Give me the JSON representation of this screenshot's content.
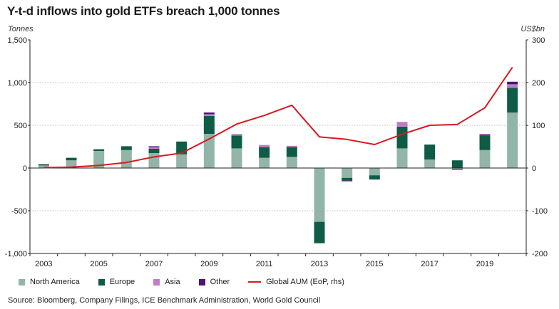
{
  "title": "Y-t-d inflows into gold ETFs breach 1,000 tonnes",
  "source": "Source: Bloomberg, Company Filings, ICE Benchmark Administration, World Gold Council",
  "chart_data": {
    "type": "bar",
    "stacked": true,
    "categories": [
      "2003",
      "2004",
      "2005",
      "2006",
      "2007",
      "2008",
      "2009",
      "2010",
      "2011",
      "2012",
      "2013",
      "2014",
      "2015",
      "2016",
      "2017",
      "2018",
      "2019",
      "2020"
    ],
    "x_tick_labels": [
      "2003",
      "2005",
      "2007",
      "2009",
      "2011",
      "2013",
      "2015",
      "2017",
      "2019"
    ],
    "y_left": {
      "label": "Tonnes",
      "ticks": [
        "1,500",
        "1,000",
        "500",
        "0",
        "-500",
        "-1,000"
      ],
      "tick_values": [
        1500,
        1000,
        500,
        0,
        -500,
        -1000
      ],
      "range": [
        -1000,
        1500
      ]
    },
    "y_right": {
      "label": "US$bn",
      "ticks": [
        "300",
        "200",
        "100",
        "0",
        "-100",
        "-200"
      ],
      "tick_values": [
        300,
        200,
        100,
        0,
        -100,
        -200
      ],
      "range": [
        -200,
        300
      ]
    },
    "grid": true,
    "legend_position": "bottom",
    "series": [
      {
        "name": "North America",
        "axis": "left",
        "color": "#93b5a8",
        "values": [
          30,
          90,
          200,
          210,
          175,
          160,
          400,
          230,
          120,
          130,
          -630,
          -115,
          -85,
          230,
          100,
          -10,
          210,
          650
        ]
      },
      {
        "name": "Europe",
        "axis": "left",
        "color": "#0e5c45",
        "values": [
          15,
          30,
          20,
          45,
          50,
          150,
          210,
          150,
          125,
          115,
          -250,
          -30,
          -50,
          255,
          175,
          90,
          175,
          290
        ]
      },
      {
        "name": "Asia",
        "axis": "left",
        "color": "#c27cc5",
        "values": [
          0,
          0,
          0,
          0,
          20,
          0,
          20,
          10,
          25,
          15,
          0,
          0,
          0,
          55,
          0,
          -10,
          10,
          40
        ]
      },
      {
        "name": "Other",
        "axis": "left",
        "color": "#4a1478",
        "values": [
          0,
          0,
          0,
          0,
          10,
          0,
          20,
          5,
          0,
          0,
          0,
          -10,
          0,
          0,
          0,
          -5,
          5,
          30
        ]
      },
      {
        "name": "Global AUM (EoP, rhs)",
        "axis": "right",
        "type": "line",
        "color": "#d7191f",
        "values": [
          1,
          2,
          6,
          13,
          26,
          35,
          68,
          103,
          123,
          147,
          73,
          67,
          55,
          79,
          100,
          102,
          141,
          236
        ]
      }
    ]
  }
}
